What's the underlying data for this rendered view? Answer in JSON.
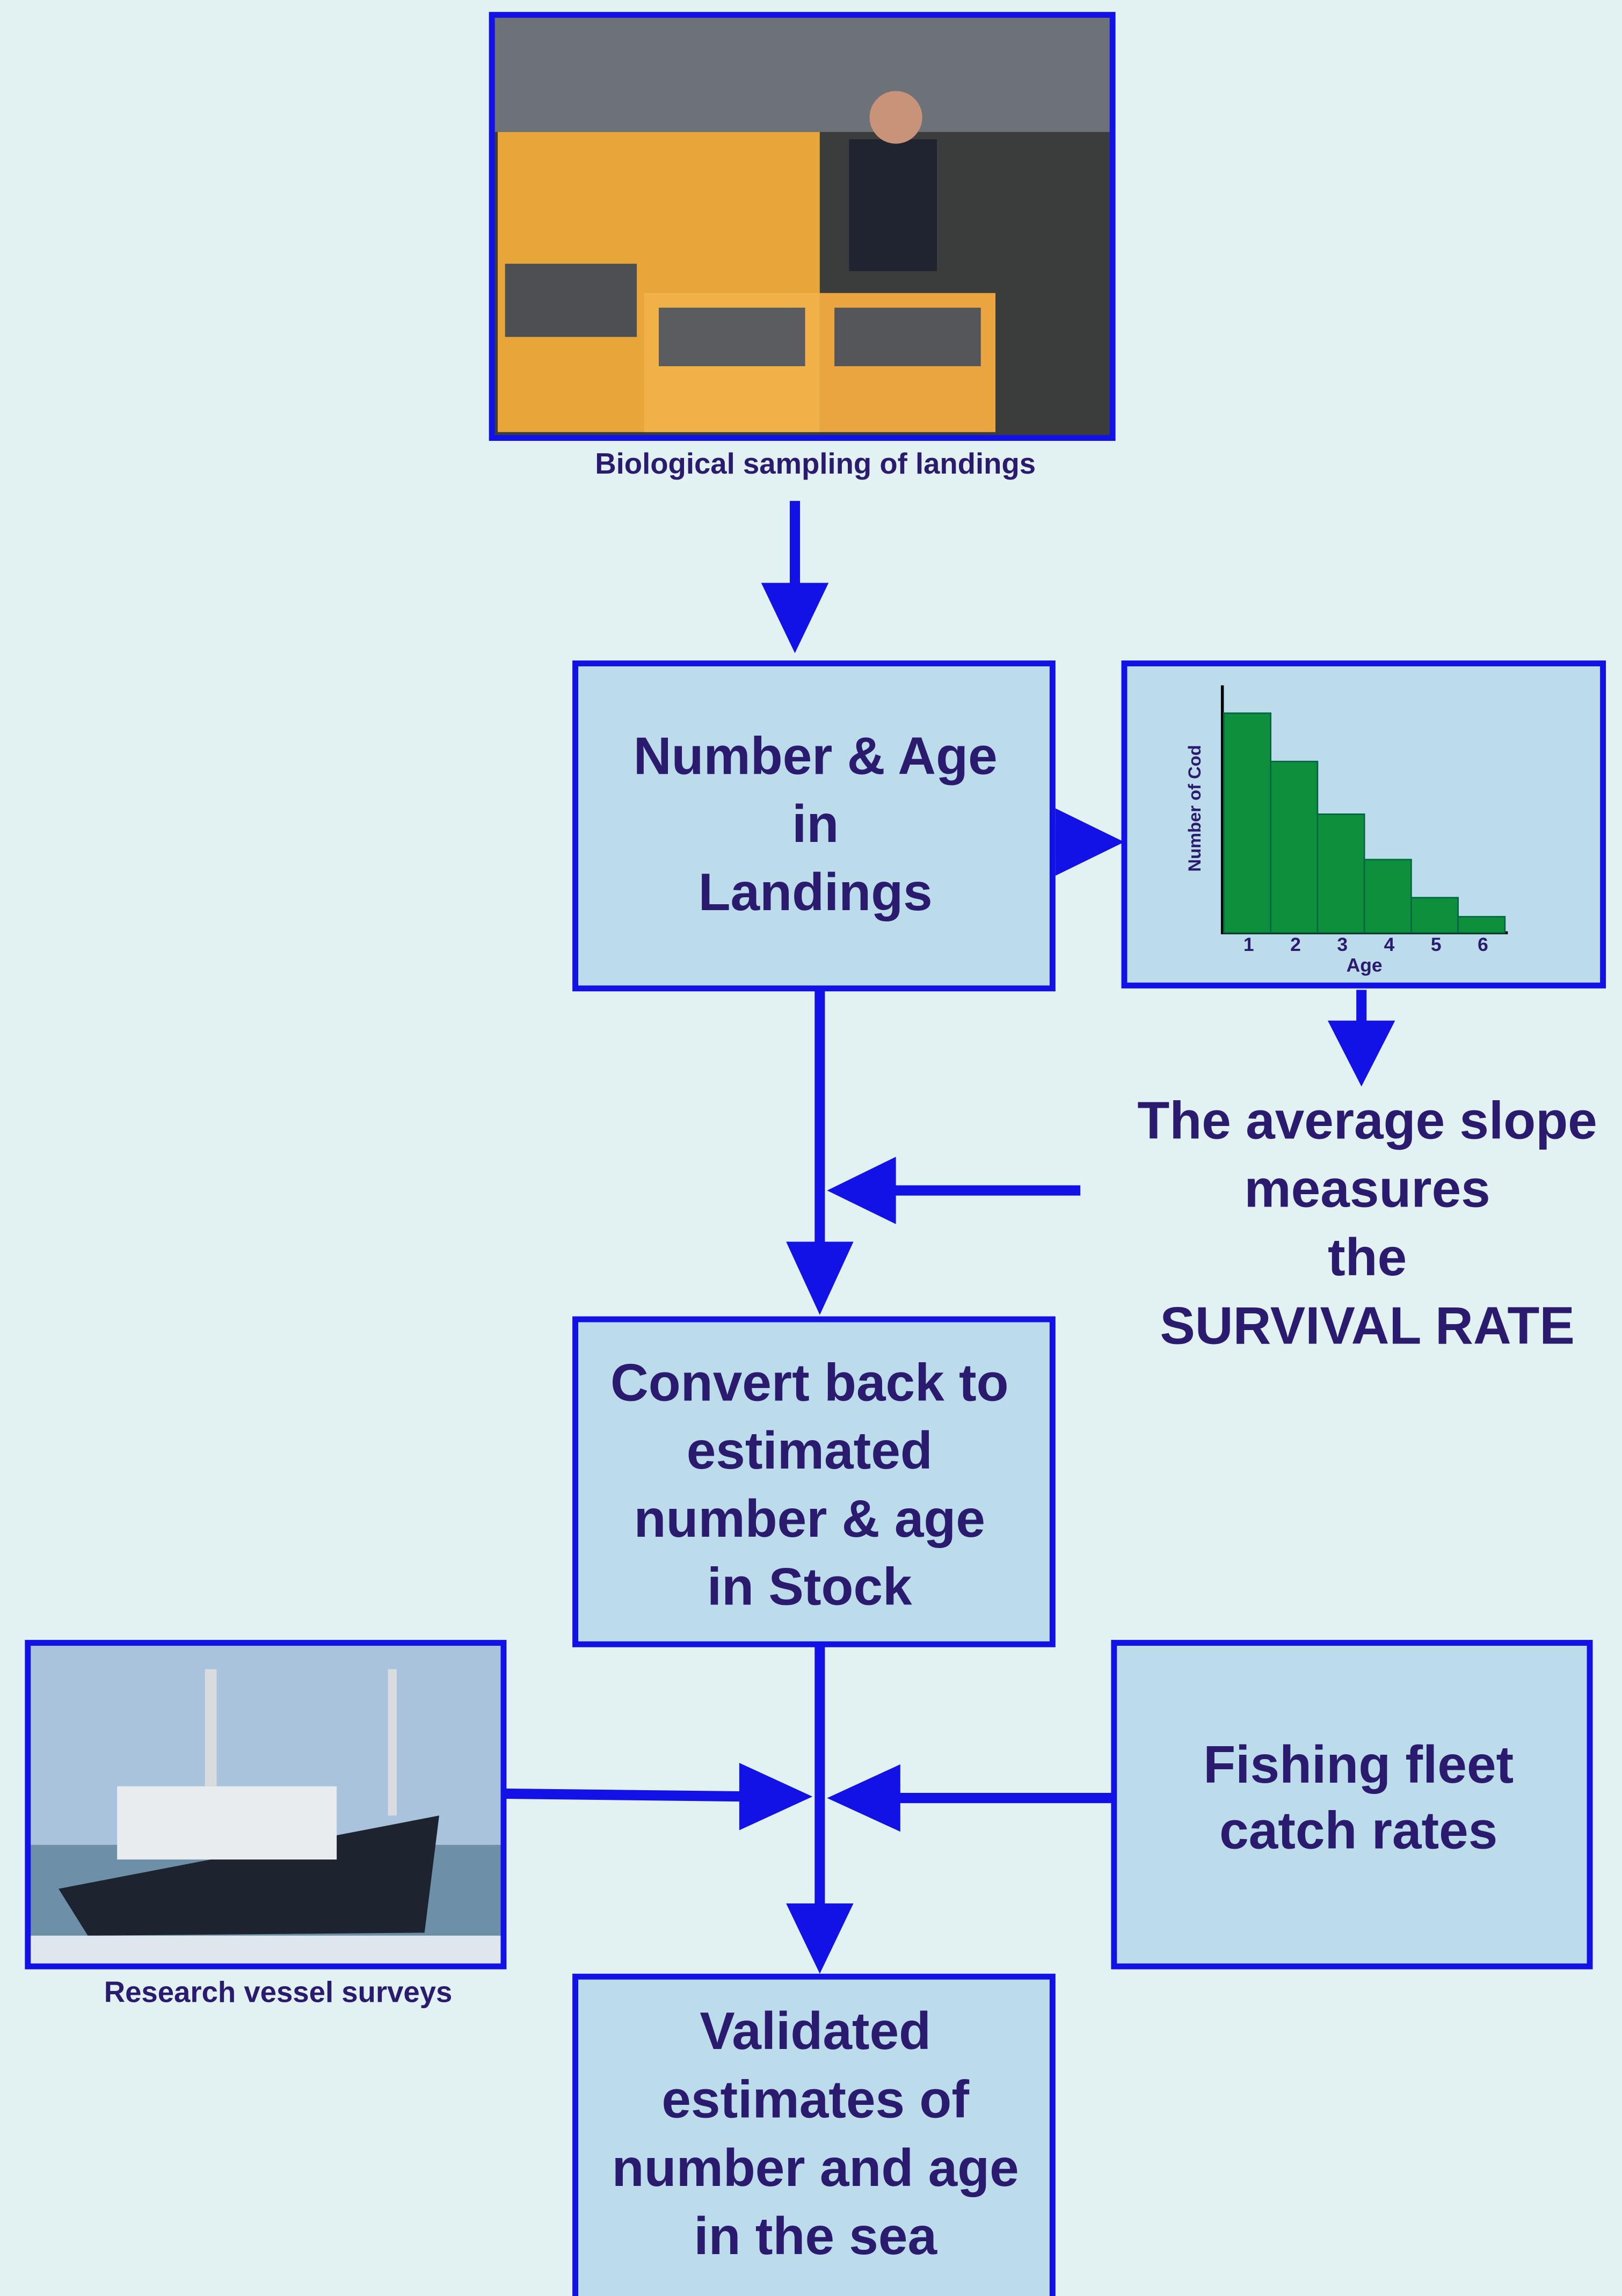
{
  "photo_top": {
    "caption": "Biological sampling of landings"
  },
  "nodes": [
    {
      "lines": [
        "Number & Age",
        "in",
        "Landings"
      ]
    },
    {
      "lines": [
        "Convert back to",
        "estimated",
        "number & age",
        "in Stock"
      ]
    },
    {
      "lines": [
        "Fishing fleet",
        "catch rates"
      ]
    },
    {
      "lines": [
        "Validated",
        "estimates of",
        "number and age",
        "in the sea"
      ]
    }
  ],
  "note": {
    "lines": [
      "The average slope",
      "measures",
      "the",
      "SURVIVAL RATE"
    ]
  },
  "photo_ship": {
    "caption": "Research vessel surveys"
  },
  "chart_data": {
    "type": "bar",
    "y_label": "Number of Cod",
    "x_label": "Age",
    "categories": [
      "1",
      "2",
      "3",
      "4",
      "5",
      "6"
    ],
    "values": [
      150,
      117,
      81,
      50,
      24,
      11
    ],
    "color": "#0d8f3c"
  }
}
